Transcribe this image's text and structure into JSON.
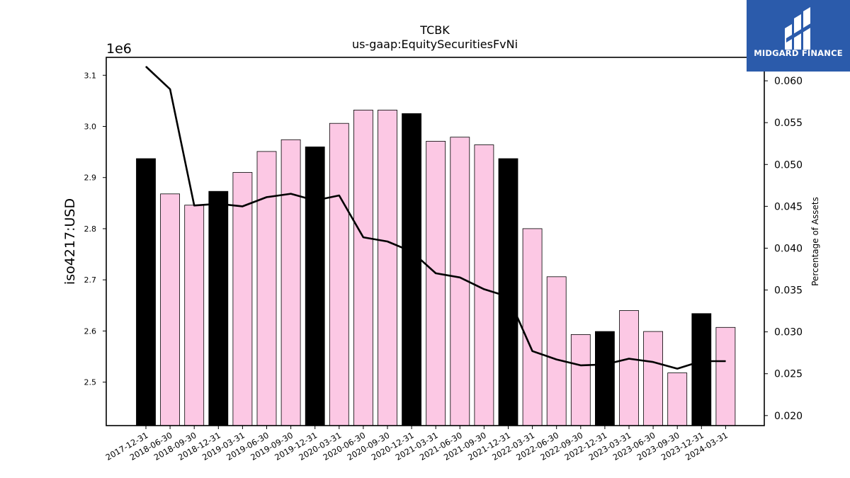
{
  "brand": {
    "name": "MIDGARD FINANCE",
    "color": "#2b5bab"
  },
  "chart_data": {
    "type": "bar",
    "title": "TCBK",
    "subtitle": "us-gaap:EquitySecuritiesFvNi",
    "ylabel": "iso4217:USD",
    "y_offset_text": "1e6",
    "y2label": "Percentage of Assets",
    "ylim": [
      2.415,
      3.135
    ],
    "y2lim": [
      0.0188,
      0.0628
    ],
    "yticks": [
      "2.5",
      "2.6",
      "2.7",
      "2.8",
      "2.9",
      "3.0",
      "3.1"
    ],
    "y2ticks": [
      "0.020",
      "0.025",
      "0.030",
      "0.035",
      "0.040",
      "0.045",
      "0.050",
      "0.055",
      "0.060"
    ],
    "grid": false,
    "colors": {
      "year_end_bar": "#000000",
      "quarter_bar": "#fcc8e4",
      "line": "#000000"
    },
    "categories": [
      "2017-12-31",
      "2018-06-30",
      "2018-09-30",
      "2018-12-31",
      "2019-03-31",
      "2019-06-30",
      "2019-09-30",
      "2019-12-31",
      "2020-03-31",
      "2020-06-30",
      "2020-09-30",
      "2020-12-31",
      "2021-03-31",
      "2021-06-30",
      "2021-09-30",
      "2021-12-31",
      "2022-03-31",
      "2022-06-30",
      "2022-09-30",
      "2022-12-31",
      "2023-03-31",
      "2023-06-30",
      "2023-09-30",
      "2023-12-31",
      "2024-03-31"
    ],
    "series": [
      {
        "type": "bar",
        "axis": "left",
        "values": [
          2.937,
          2.868,
          2.846,
          2.873,
          2.91,
          2.951,
          2.974,
          2.96,
          3.006,
          3.032,
          3.032,
          3.025,
          2.971,
          2.979,
          2.964,
          2.937,
          2.8,
          2.706,
          2.593,
          2.599,
          2.64,
          2.599,
          2.518,
          2.634,
          2.607
        ],
        "year_end": [
          true,
          false,
          false,
          true,
          false,
          false,
          false,
          true,
          false,
          false,
          false,
          true,
          false,
          false,
          false,
          true,
          false,
          false,
          false,
          true,
          false,
          false,
          false,
          true,
          false
        ]
      },
      {
        "type": "line",
        "axis": "right",
        "values": [
          0.0617,
          0.059,
          0.0451,
          0.0453,
          0.045,
          0.0461,
          0.0465,
          0.0457,
          0.0463,
          0.0413,
          0.0408,
          0.0396,
          0.037,
          0.0365,
          0.0351,
          0.0342,
          0.0277,
          0.0267,
          0.026,
          0.0261,
          0.0268,
          0.0264,
          0.0256,
          0.0265,
          0.0265
        ]
      }
    ]
  }
}
